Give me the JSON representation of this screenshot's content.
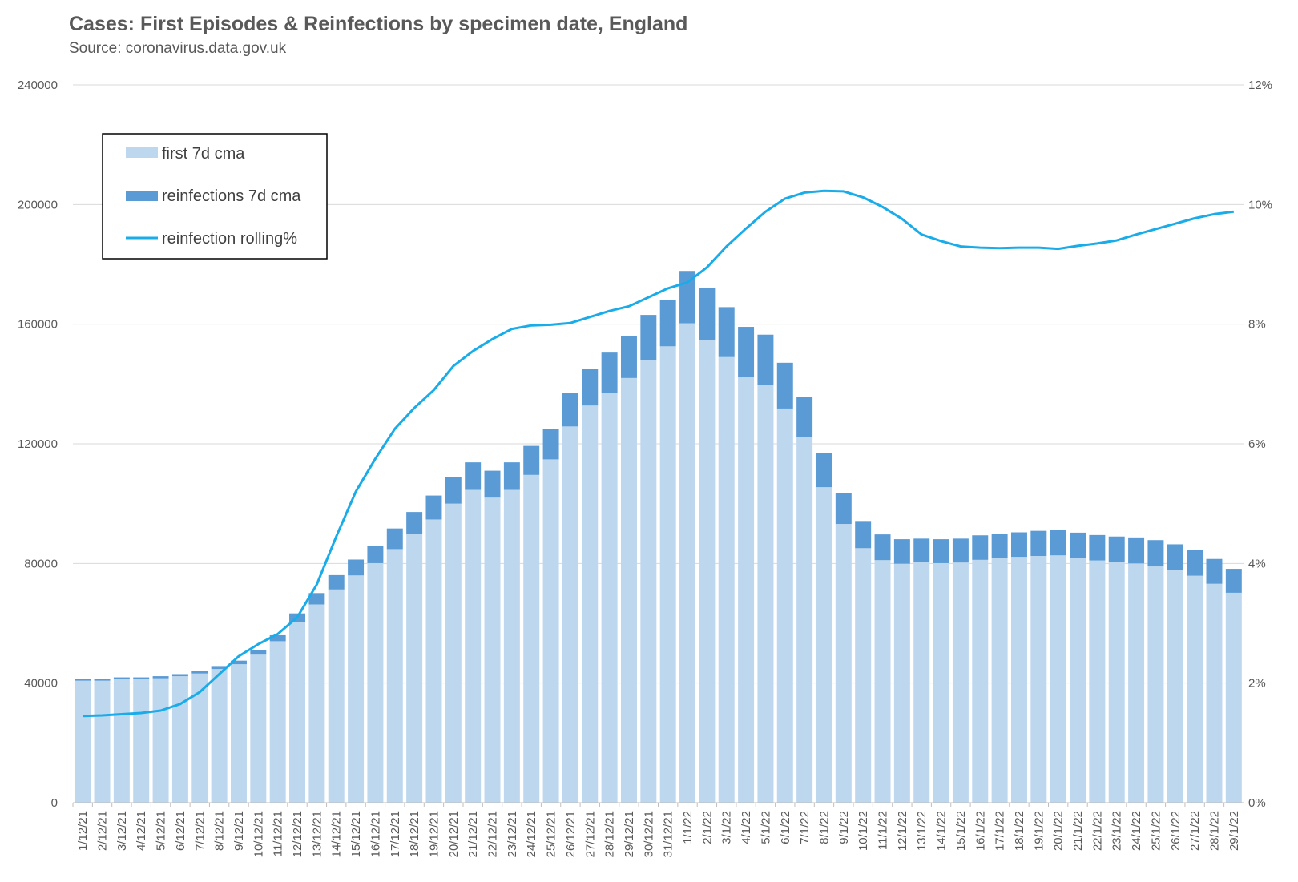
{
  "title": "Cases: First Episodes & Reinfections by specimen date, England",
  "subtitle": "Source: coronavirus.data.gov.uk",
  "colors": {
    "first": "#BDD7EE",
    "reinfections": "#5B9BD5",
    "line": "#1AACE8",
    "grid": "#D9D9D9",
    "text": "#595959"
  },
  "chart_data": {
    "type": "bar",
    "stacked": true,
    "categories": [
      "1/12/21",
      "2/12/21",
      "3/12/21",
      "4/12/21",
      "5/12/21",
      "6/12/21",
      "7/12/21",
      "8/12/21",
      "9/12/21",
      "10/12/21",
      "11/12/21",
      "12/12/21",
      "13/12/21",
      "14/12/21",
      "15/12/21",
      "16/12/21",
      "17/12/21",
      "18/12/21",
      "19/12/21",
      "20/12/21",
      "21/12/21",
      "22/12/21",
      "23/12/21",
      "24/12/21",
      "25/12/21",
      "26/12/21",
      "27/12/21",
      "28/12/21",
      "29/12/21",
      "30/12/21",
      "31/12/21",
      "1/1/22",
      "2/1/22",
      "3/1/22",
      "4/1/22",
      "5/1/22",
      "6/1/22",
      "7/1/22",
      "8/1/22",
      "9/1/22",
      "10/1/22",
      "11/1/22",
      "12/1/22",
      "13/1/22",
      "14/1/22",
      "15/1/22",
      "16/1/22",
      "17/1/22",
      "18/1/22",
      "19/1/22",
      "20/1/22",
      "21/1/22",
      "22/1/22",
      "23/1/22",
      "24/1/22",
      "25/1/22",
      "26/1/22",
      "27/1/22",
      "28/1/22",
      "29/1/22"
    ],
    "series": [
      {
        "name": "first 7d cma",
        "axis": "left",
        "values": [
          40800,
          40800,
          41300,
          41300,
          41600,
          42300,
          43200,
          44700,
          46300,
          49500,
          54000,
          60500,
          66300,
          71300,
          76000,
          80100,
          84800,
          89800,
          94700,
          100000,
          104600,
          102000,
          104600,
          109600,
          114800,
          125800,
          132800,
          137000,
          142000,
          148000,
          152600,
          160300,
          154600,
          149000,
          142300,
          139800,
          131800,
          122200,
          105500,
          93200,
          85100,
          81100,
          79900,
          80400,
          80100,
          80300,
          81200,
          81700,
          82200,
          82500,
          82700,
          81900,
          81000,
          80500,
          80000,
          79000,
          77900,
          75900,
          73200,
          70200
        ]
      },
      {
        "name": "reinfections 7d cma",
        "axis": "left",
        "values": [
          600,
          600,
          600,
          600,
          700,
          700,
          800,
          1000,
          1200,
          1500,
          2000,
          2800,
          3800,
          4800,
          5300,
          5800,
          6900,
          7400,
          8000,
          9000,
          9200,
          9000,
          9200,
          9700,
          10100,
          11300,
          12300,
          13500,
          14000,
          15100,
          15600,
          17500,
          17500,
          16700,
          16800,
          16700,
          15300,
          13600,
          11500,
          10400,
          9100,
          8600,
          8200,
          7900,
          8000,
          8000,
          8200,
          8200,
          8200,
          8400,
          8500,
          8400,
          8500,
          8500,
          8700,
          8800,
          8500,
          8500,
          8300,
          8000
        ]
      },
      {
        "name": "reinfection rolling%",
        "axis": "right",
        "type": "line",
        "values": [
          1.45,
          1.46,
          1.48,
          1.5,
          1.54,
          1.65,
          1.85,
          2.15,
          2.45,
          2.65,
          2.82,
          3.1,
          3.65,
          4.45,
          5.2,
          5.75,
          6.25,
          6.6,
          6.9,
          7.3,
          7.55,
          7.75,
          7.92,
          7.98,
          7.99,
          8.02,
          8.12,
          8.22,
          8.3,
          8.45,
          8.6,
          8.7,
          8.95,
          9.3,
          9.6,
          9.88,
          10.1,
          10.2,
          10.23,
          10.22,
          10.12,
          9.96,
          9.76,
          9.5,
          9.39,
          9.3,
          9.28,
          9.27,
          9.28,
          9.28,
          9.26,
          9.31,
          9.35,
          9.4,
          9.5,
          9.59,
          9.68,
          9.77,
          9.84,
          9.88
        ]
      }
    ],
    "y_left": {
      "ylim": [
        0,
        240000
      ],
      "ticks": [
        "0",
        "40000",
        "80000",
        "120000",
        "160000",
        "200000",
        "240000"
      ]
    },
    "y_right": {
      "ylim": [
        0,
        12
      ],
      "ticks": [
        "0%",
        "2%",
        "4%",
        "6%",
        "8%",
        "10%",
        "12%"
      ]
    },
    "grid": true,
    "legend": {
      "placement": "top-left",
      "entries": [
        {
          "label": "first 7d cma",
          "marker": "bar-light"
        },
        {
          "label": "reinfections 7d cma",
          "marker": "bar-dark"
        },
        {
          "label": "reinfection rolling%",
          "marker": "line"
        }
      ]
    }
  }
}
